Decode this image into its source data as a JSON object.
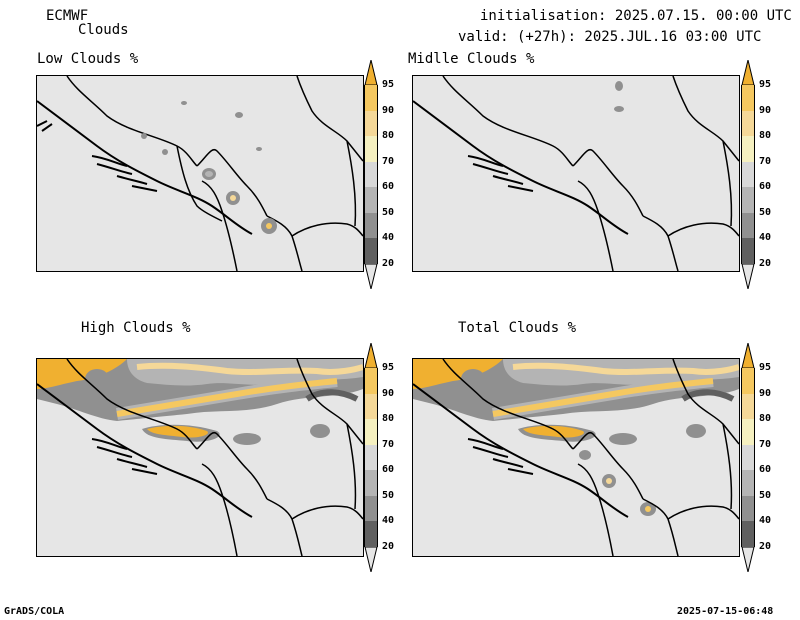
{
  "header": {
    "model": "ECMWF",
    "product": "Clouds",
    "init": "initialisation: 2025.07.15. 00:00 UTC",
    "valid": "valid: (+27h): 2025.JUL.16 03:00 UTC"
  },
  "panels": [
    {
      "title": "Low Clouds %"
    },
    {
      "title": "Midlle Clouds %"
    },
    {
      "title": "High Clouds %"
    },
    {
      "title": "Total Clouds %"
    }
  ],
  "colorbar": {
    "levels": [
      "95",
      "90",
      "80",
      "70",
      "60",
      "50",
      "40",
      "20"
    ],
    "colors": [
      "#f0b030",
      "#f5c860",
      "#f5d898",
      "#f5f0c0",
      "#d8d8d8",
      "#b4b4b4",
      "#909090",
      "#606060",
      "#d8d8d8"
    ]
  },
  "footer": {
    "left": "GrADS/COLA",
    "right": "2025-07-15-06:48"
  }
}
